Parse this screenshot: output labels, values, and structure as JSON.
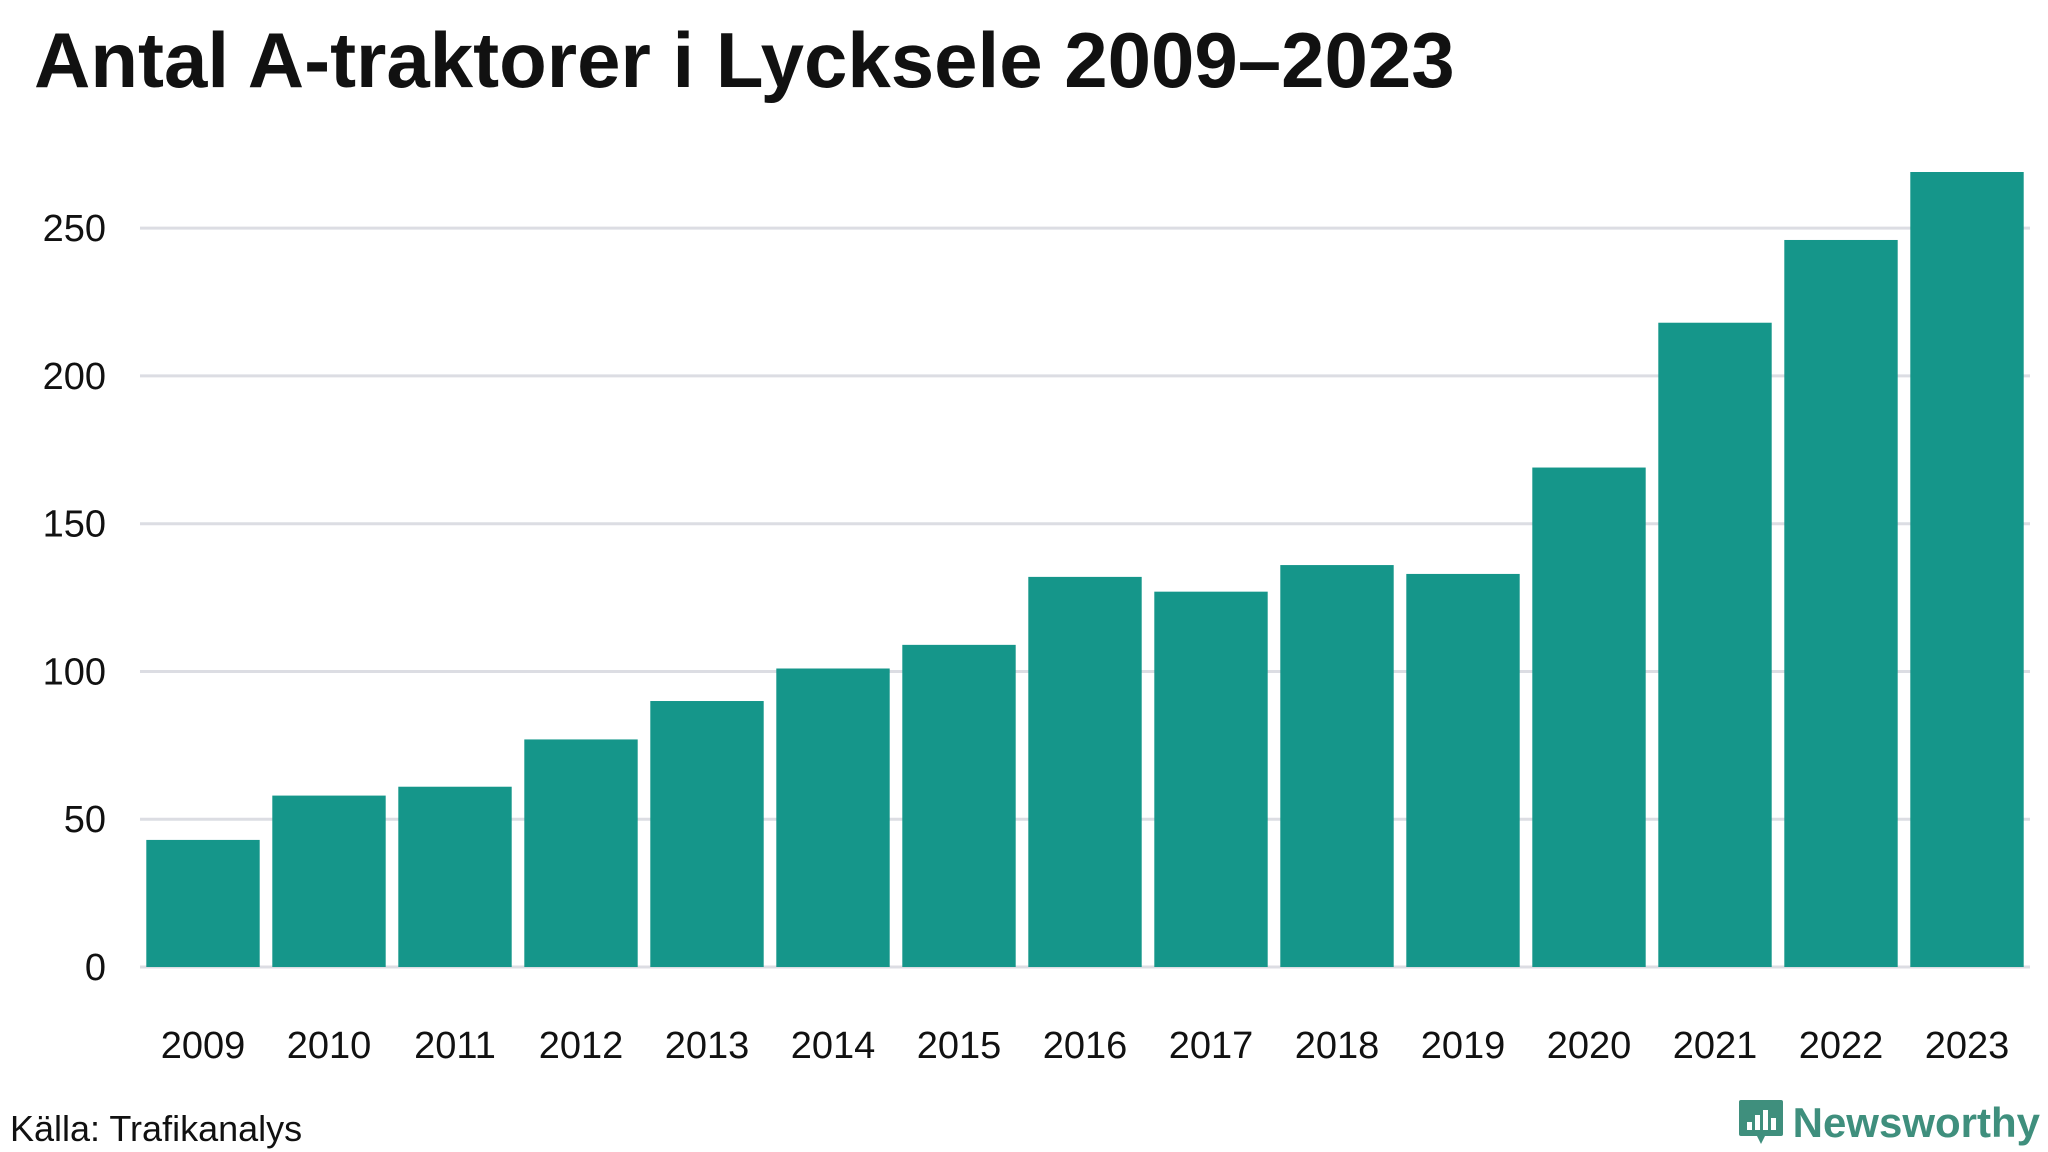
{
  "title": "Antal A-traktorer i Lycksele 2009–2023",
  "source": "Källa: Trafikanalys",
  "brand": "Newsworthy",
  "colors": {
    "bar": "#15968a",
    "grid": "#dcdde3",
    "text": "#111111",
    "brand": "#3f8f7d"
  },
  "chart_data": {
    "type": "bar",
    "categories": [
      "2009",
      "2010",
      "2011",
      "2012",
      "2013",
      "2014",
      "2015",
      "2016",
      "2017",
      "2018",
      "2019",
      "2020",
      "2021",
      "2022",
      "2023"
    ],
    "values": [
      43,
      58,
      61,
      77,
      90,
      101,
      109,
      132,
      127,
      136,
      133,
      169,
      218,
      246,
      269
    ],
    "yticks": [
      0,
      50,
      100,
      150,
      200,
      250
    ],
    "ylim": [
      0,
      269
    ],
    "grid": true,
    "title": "Antal A-traktorer i Lycksele 2009–2023",
    "xlabel": "",
    "ylabel": ""
  }
}
